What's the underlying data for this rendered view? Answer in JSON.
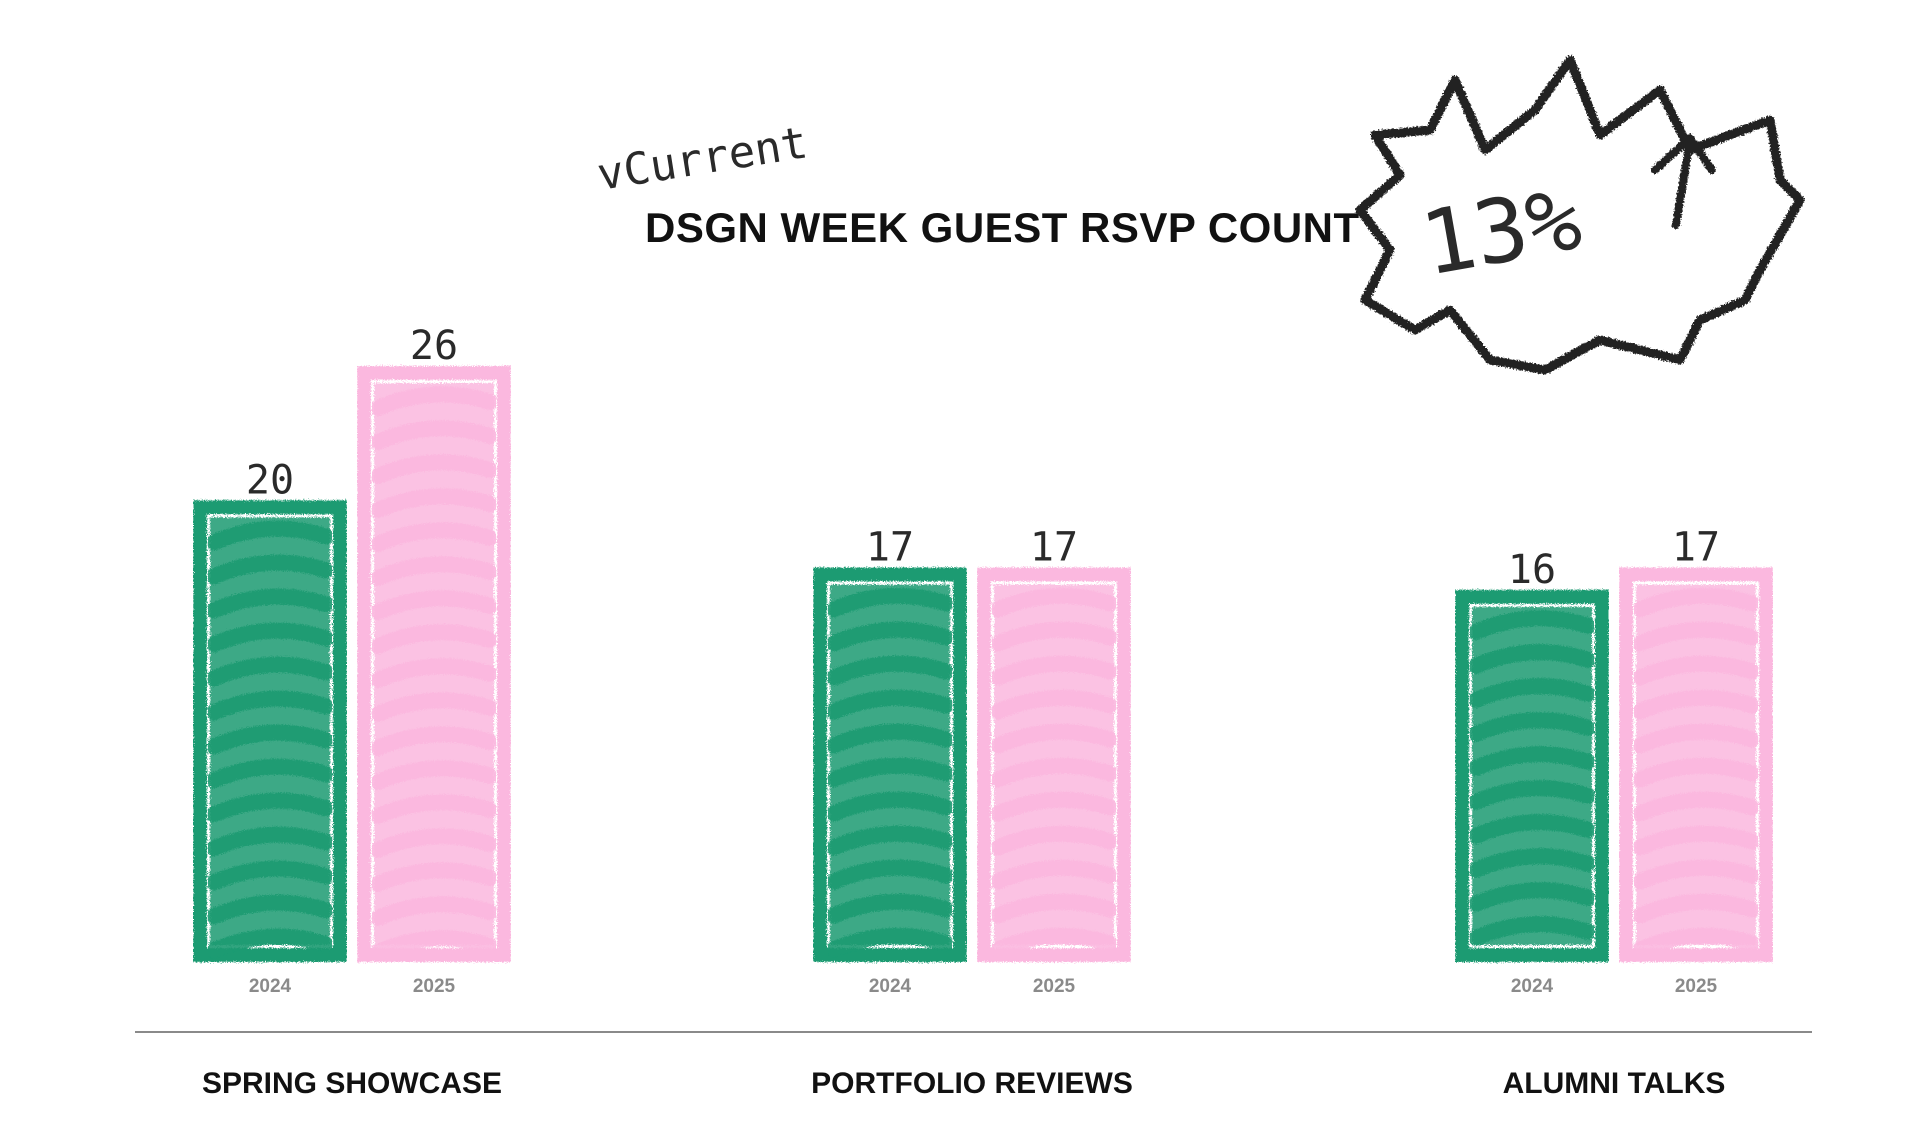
{
  "chart_data": {
    "type": "bar",
    "title": "DSGN WEEK GUEST RSVP COUNT",
    "annotation_note": "vCurrent",
    "callout": "13%",
    "callout_icon": "up-arrow-icon",
    "categories": [
      "SPRING SHOWCASE",
      "PORTFOLIO REVIEWS",
      "ALUMNI TALKS"
    ],
    "series": [
      {
        "name": "2024",
        "color": "#1a9b72",
        "values": [
          20,
          17,
          16
        ]
      },
      {
        "name": "2025",
        "color": "#fbb8df",
        "values": [
          26,
          17,
          17
        ]
      }
    ],
    "ylim": [
      0,
      26
    ],
    "xlabel": "",
    "ylabel": "",
    "grid": false,
    "legend": "none"
  }
}
